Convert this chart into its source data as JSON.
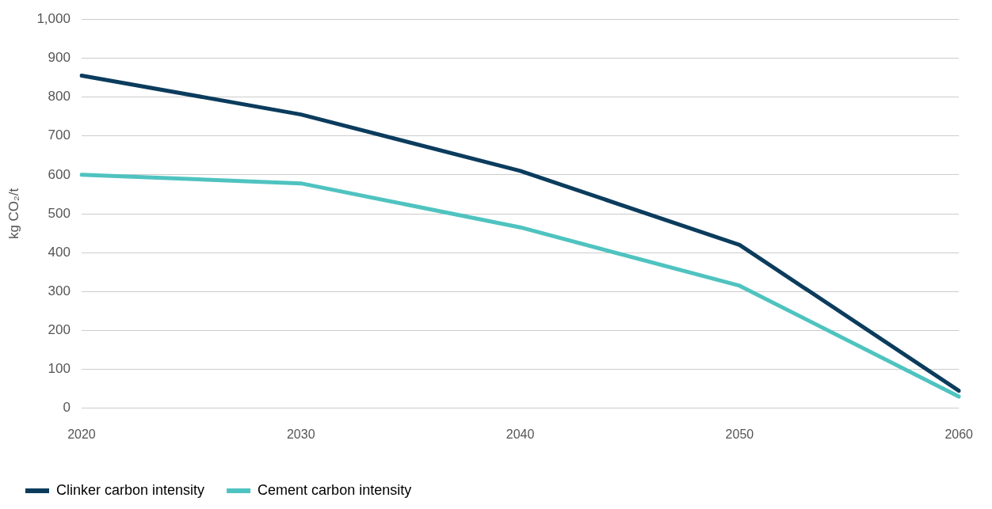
{
  "chart_data": {
    "type": "line",
    "ylabel": "kg CO₂/t",
    "categories": [
      "2020",
      "2030",
      "2040",
      "2050",
      "2060"
    ],
    "series": [
      {
        "name": "Clinker carbon intensity",
        "color": "#0b3c5d",
        "values": [
          855,
          755,
          610,
          420,
          45
        ]
      },
      {
        "name": "Cement carbon intensity",
        "color": "#4fc3c0",
        "values": [
          600,
          578,
          465,
          315,
          30
        ]
      }
    ],
    "ylim": [
      0,
      1000
    ],
    "yticks": [
      0,
      {
        "value": 100,
        "label": "100"
      },
      200,
      300,
      400,
      500,
      600,
      700,
      800,
      900,
      {
        "value": 1000,
        "label": "1,000"
      }
    ],
    "grid": "y",
    "legend": "bottom left",
    "marker": "none",
    "line_style": "solid"
  }
}
